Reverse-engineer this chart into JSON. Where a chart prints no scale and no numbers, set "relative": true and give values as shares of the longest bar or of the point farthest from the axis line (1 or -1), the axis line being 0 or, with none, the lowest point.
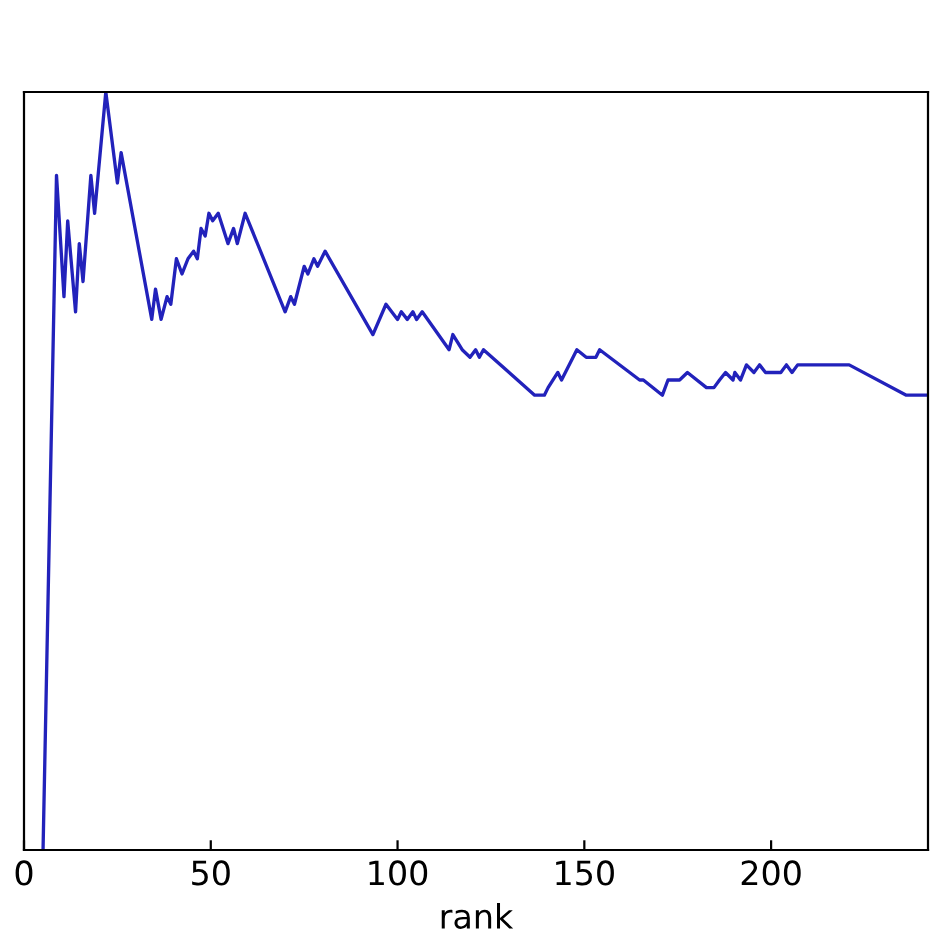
{
  "chart_data": {
    "type": "line",
    "xlabel": "rank",
    "relative": true,
    "xlim": [
      0,
      242
    ],
    "xticks": [
      0,
      50,
      100,
      150,
      200
    ],
    "tick_labels": "x",
    "grid": false,
    "legend": false,
    "marker": "none",
    "line_style": "solid",
    "series": [
      {
        "color": "#2222bb",
        "x": [
          5.1,
          8.7,
          10.7,
          11.7,
          13.8,
          14.8,
          15.8,
          17.9,
          18.9,
          21.9,
          25.0,
          26.0,
          34.2,
          35.2,
          36.7,
          38.3,
          39.3,
          40.8,
          42.3,
          43.9,
          45.4,
          46.4,
          47.4,
          48.5,
          49.5,
          50.5,
          52.0,
          54.6,
          56.1,
          57.1,
          59.2,
          69.9,
          71.4,
          72.4,
          75.0,
          76.0,
          77.6,
          78.6,
          80.6,
          93.4,
          96.9,
          100.0,
          101.0,
          102.6,
          104.1,
          105.1,
          106.6,
          113.8,
          114.8,
          117.3,
          119.4,
          120.9,
          121.9,
          123.0,
          136.7,
          137.8,
          139.3,
          140.3,
          142.9,
          143.9,
          148.0,
          150.5,
          152.0,
          153.1,
          154.1,
          164.8,
          165.8,
          170.9,
          172.4,
          174.5,
          175.5,
          177.6,
          182.7,
          184.7,
          186.2,
          187.8,
          189.8,
          190.3,
          191.8,
          193.4,
          195.4,
          196.9,
          198.5,
          200.5,
          202.6,
          204.1,
          205.6,
          207.1,
          209.2,
          210.7,
          212.8,
          214.3,
          215.8,
          217.9,
          219.4,
          220.9,
          236.2,
          237.8,
          239.8,
          241.8
        ],
        "values": [
          0,
          0.89,
          0.73,
          0.83,
          0.71,
          0.8,
          0.75,
          0.89,
          0.84,
          1.0,
          0.88,
          0.92,
          0.7,
          0.74,
          0.7,
          0.73,
          0.72,
          0.78,
          0.76,
          0.78,
          0.79,
          0.78,
          0.82,
          0.81,
          0.84,
          0.83,
          0.84,
          0.8,
          0.82,
          0.8,
          0.84,
          0.71,
          0.73,
          0.72,
          0.77,
          0.76,
          0.78,
          0.77,
          0.79,
          0.68,
          0.72,
          0.7,
          0.71,
          0.7,
          0.71,
          0.7,
          0.71,
          0.66,
          0.68,
          0.66,
          0.65,
          0.66,
          0.65,
          0.66,
          0.6,
          0.6,
          0.6,
          0.61,
          0.63,
          0.62,
          0.66,
          0.65,
          0.65,
          0.65,
          0.66,
          0.62,
          0.62,
          0.6,
          0.62,
          0.62,
          0.62,
          0.63,
          0.61,
          0.61,
          0.62,
          0.63,
          0.62,
          0.63,
          0.62,
          0.64,
          0.63,
          0.64,
          0.63,
          0.63,
          0.63,
          0.64,
          0.63,
          0.64,
          0.64,
          0.64,
          0.64,
          0.64,
          0.64,
          0.64,
          0.64,
          0.64,
          0.6,
          0.6,
          0.6,
          0.6
        ]
      }
    ]
  }
}
